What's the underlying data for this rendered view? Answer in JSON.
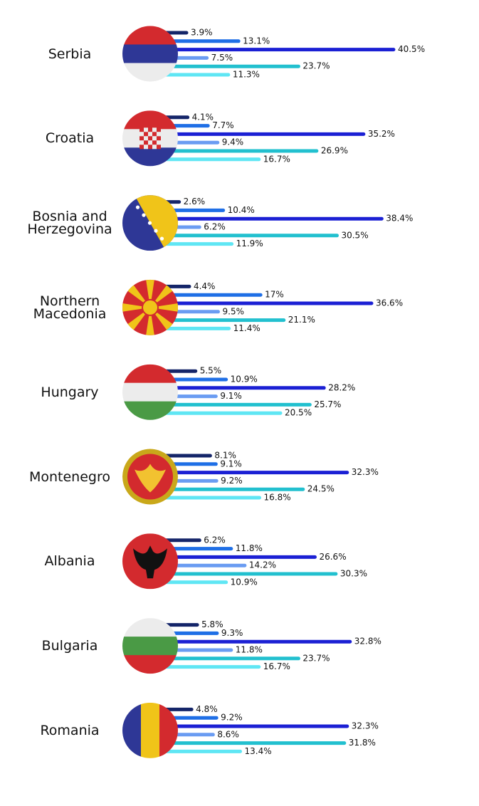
{
  "chart_data": {
    "type": "bar",
    "categories": [
      "Serbia",
      "Croatia",
      "Bosnia and Herzegovina",
      "Northern Macedonia",
      "Hungary",
      "Montenegro",
      "Albania",
      "Bulgaria",
      "Romania"
    ],
    "series": [
      {
        "color": "#142569",
        "values": [
          3.9,
          4.1,
          2.6,
          4.4,
          5.5,
          8.1,
          6.2,
          5.8,
          4.8
        ],
        "value_labels": [
          "3.9%",
          "4.1%",
          "2.6%",
          "4.4%",
          "5.5%",
          "8.1%",
          "6.2%",
          "5.8%",
          "4.8%"
        ]
      },
      {
        "color": "#1f6fe6",
        "values": [
          13.1,
          7.7,
          10.4,
          17,
          10.9,
          9.1,
          11.8,
          9.3,
          9.2
        ],
        "value_labels": [
          "13.1%",
          "7.7%",
          "10.4%",
          "17%",
          "10.9%",
          "9.1%",
          "11.8%",
          "9.3%",
          "9.2%"
        ]
      },
      {
        "color": "#1b20d4",
        "values": [
          40.5,
          35.2,
          38.4,
          36.6,
          28.2,
          32.3,
          26.6,
          32.8,
          32.3
        ],
        "value_labels": [
          "40.5%",
          "35.2%",
          "38.4%",
          "36.6%",
          "28.2%",
          "32.3%",
          "26.6%",
          "32.8%",
          "32.3%"
        ]
      },
      {
        "color": "#6a9cf2",
        "values": [
          7.5,
          9.4,
          6.2,
          9.5,
          9.1,
          9.2,
          14.2,
          11.8,
          8.6
        ],
        "value_labels": [
          "7.5%",
          "9.4%",
          "6.2%",
          "9.5%",
          "9.1%",
          "9.2%",
          "14.2%",
          "11.8%",
          "8.6%"
        ]
      },
      {
        "color": "#22c0cf",
        "values": [
          23.7,
          26.9,
          30.5,
          21.1,
          25.7,
          24.5,
          30.3,
          23.7,
          31.8
        ],
        "value_labels": [
          "23.7%",
          "26.9%",
          "30.5%",
          "21.1%",
          "25.7%",
          "24.5%",
          "30.3%",
          "23.7%",
          "31.8%"
        ]
      },
      {
        "color": "#5fe6f4",
        "values": [
          11.3,
          16.7,
          11.9,
          11.4,
          20.5,
          16.8,
          10.9,
          16.7,
          13.4
        ],
        "value_labels": [
          "11.3%",
          "16.7%",
          "11.9%",
          "11.4%",
          "20.5%",
          "16.8%",
          "10.9%",
          "16.7%",
          "13.4%"
        ]
      }
    ]
  }
}
